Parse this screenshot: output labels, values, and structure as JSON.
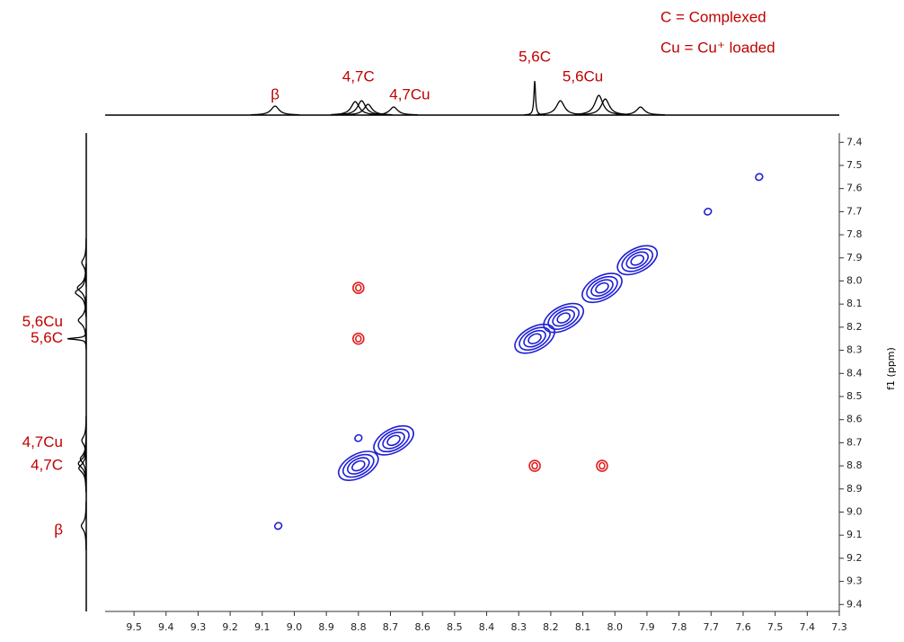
{
  "chart_data": {
    "type": "nmr2d",
    "y_axis_label": "f1 (ppm)",
    "xlim": [
      9.59,
      7.3
    ],
    "ylim": [
      7.36,
      9.43
    ],
    "xticks": [
      9.5,
      9.4,
      9.3,
      9.2,
      9.1,
      {
        "value": 9,
        "label": "9.0"
      },
      8.9,
      8.8,
      8.7,
      8.6,
      8.5,
      8.4,
      8.3,
      8.2,
      8.1,
      {
        "value": 8,
        "label": "8.0"
      },
      7.9,
      7.8,
      7.7,
      7.6,
      7.5,
      7.4,
      7.3
    ],
    "yticks": [
      7.4,
      7.5,
      7.6,
      7.7,
      7.8,
      7.9,
      {
        "value": 8,
        "label": "8.0"
      },
      8.1,
      8.2,
      8.3,
      8.4,
      8.5,
      8.6,
      8.7,
      8.8,
      8.9,
      {
        "value": 9,
        "label": "9.0"
      },
      9.1,
      9.2,
      9.3,
      9.4
    ],
    "series": [
      {
        "color": "#1f1fd6",
        "x": [
          7.55,
          7.71,
          7.93,
          8.04,
          8.16,
          8.25,
          8.69,
          8.8,
          9.05,
          8.8
        ],
        "y": [
          7.55,
          7.7,
          7.91,
          8.03,
          8.16,
          8.25,
          8.69,
          8.8,
          9.06,
          8.68
        ]
      },
      {
        "color": "#e02020",
        "x": [
          8.8,
          8.8,
          8.25,
          8.04
        ],
        "y": [
          8.03,
          8.25,
          8.8,
          8.8
        ]
      }
    ],
    "projection": {
      "positions": [
        9.06,
        8.81,
        8.79,
        8.77,
        8.69,
        8.25,
        8.17,
        8.05,
        8.03,
        7.92
      ],
      "heights": [
        10,
        15,
        16,
        12,
        9,
        38,
        16,
        22,
        18,
        9
      ]
    },
    "peak_labels": {
      "color": "#c00000",
      "top": [
        {
          "text": "β",
          "position": 9.06
        },
        {
          "text": "4,7C",
          "position": 8.8
        },
        {
          "text": "4,7Cu",
          "position": 8.64
        },
        {
          "text": "5,6C",
          "position": 8.25
        },
        {
          "text": "5,6Cu",
          "position": 8.1
        }
      ],
      "left": [
        {
          "text": "5,6Cu",
          "position": 8.18
        },
        {
          "text": "5,6C",
          "position": 8.25
        },
        {
          "text": "4,7Cu",
          "position": 8.7
        },
        {
          "text": "4,7C",
          "position": 8.8
        },
        {
          "text": "β",
          "position": 9.08
        }
      ]
    },
    "legend_notes": [
      "C = Complexed",
      "Cu = Cu⁺ loaded"
    ]
  }
}
